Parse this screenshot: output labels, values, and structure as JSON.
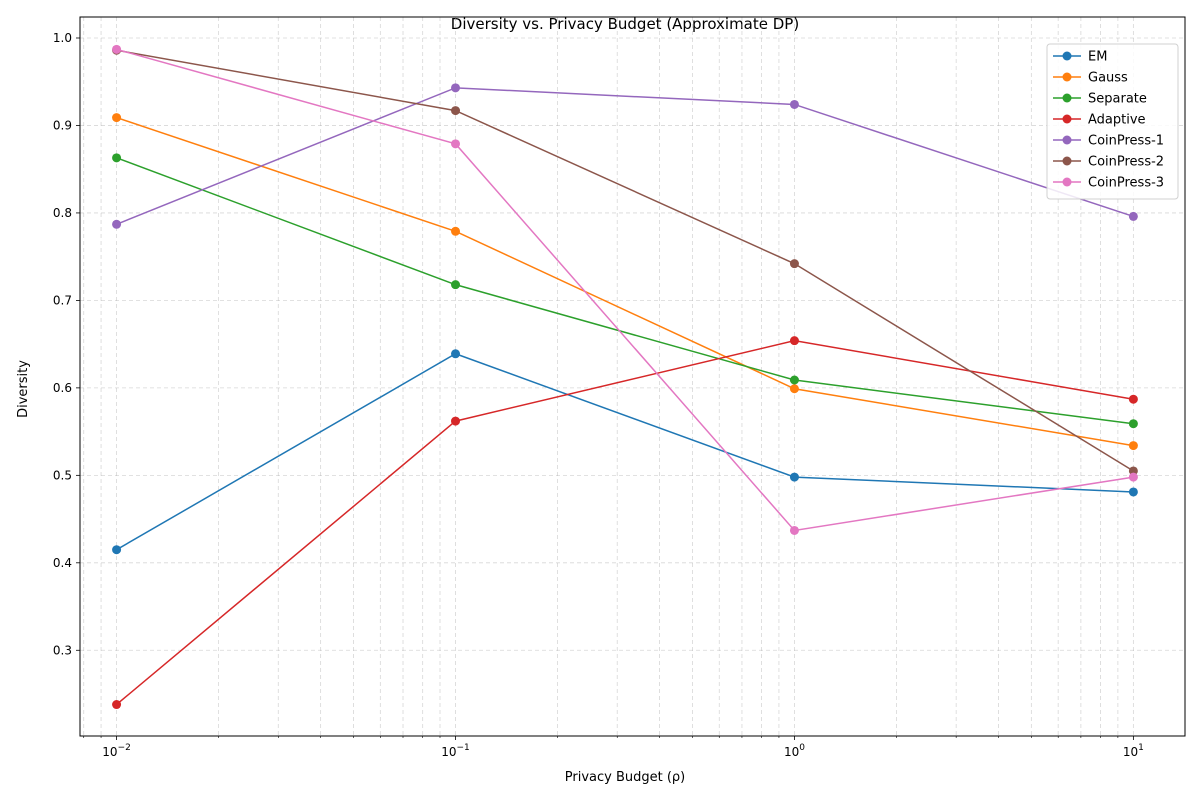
{
  "chart_data": {
    "type": "line",
    "title": "Diversity vs. Privacy Budget (Approximate DP)",
    "xlabel": "Privacy Budget (ρ)",
    "ylabel": "Diversity",
    "x_scale": "log",
    "xlim": [
      0.0078,
      14.2
    ],
    "ylim": [
      0.202,
      1.024
    ],
    "x": [
      0.01,
      0.1,
      1,
      10
    ],
    "x_ticks": [
      {
        "value": 0.01,
        "base": "10",
        "exp": "−2"
      },
      {
        "value": 0.1,
        "base": "10",
        "exp": "−1"
      },
      {
        "value": 1,
        "base": "10",
        "exp": "0"
      },
      {
        "value": 10,
        "base": "10",
        "exp": "1"
      }
    ],
    "y_ticks": [
      0.3,
      0.4,
      0.5,
      0.6,
      0.7,
      0.8,
      0.9,
      1.0
    ],
    "y_tick_labels": [
      "0.3",
      "0.4",
      "0.5",
      "0.6",
      "0.7",
      "0.8",
      "0.9",
      "1.0"
    ],
    "grid": true,
    "legend_position": "top-right",
    "series": [
      {
        "name": "EM",
        "color": "#1f77b4",
        "values": [
          0.415,
          0.639,
          0.498,
          0.481
        ]
      },
      {
        "name": "Gauss",
        "color": "#ff7f0e",
        "values": [
          0.909,
          0.779,
          0.599,
          0.534
        ]
      },
      {
        "name": "Separate",
        "color": "#2ca02c",
        "values": [
          0.863,
          0.718,
          0.609,
          0.559
        ]
      },
      {
        "name": "Adaptive",
        "color": "#d62728",
        "values": [
          0.238,
          0.562,
          0.654,
          0.587
        ]
      },
      {
        "name": "CoinPress-1",
        "color": "#9467bd",
        "values": [
          0.787,
          0.943,
          0.924,
          0.796
        ]
      },
      {
        "name": "CoinPress-2",
        "color": "#8c564b",
        "values": [
          0.986,
          0.917,
          0.742,
          0.505
        ]
      },
      {
        "name": "CoinPress-3",
        "color": "#e377c2",
        "values": [
          0.987,
          0.879,
          0.437,
          0.498
        ]
      }
    ]
  }
}
